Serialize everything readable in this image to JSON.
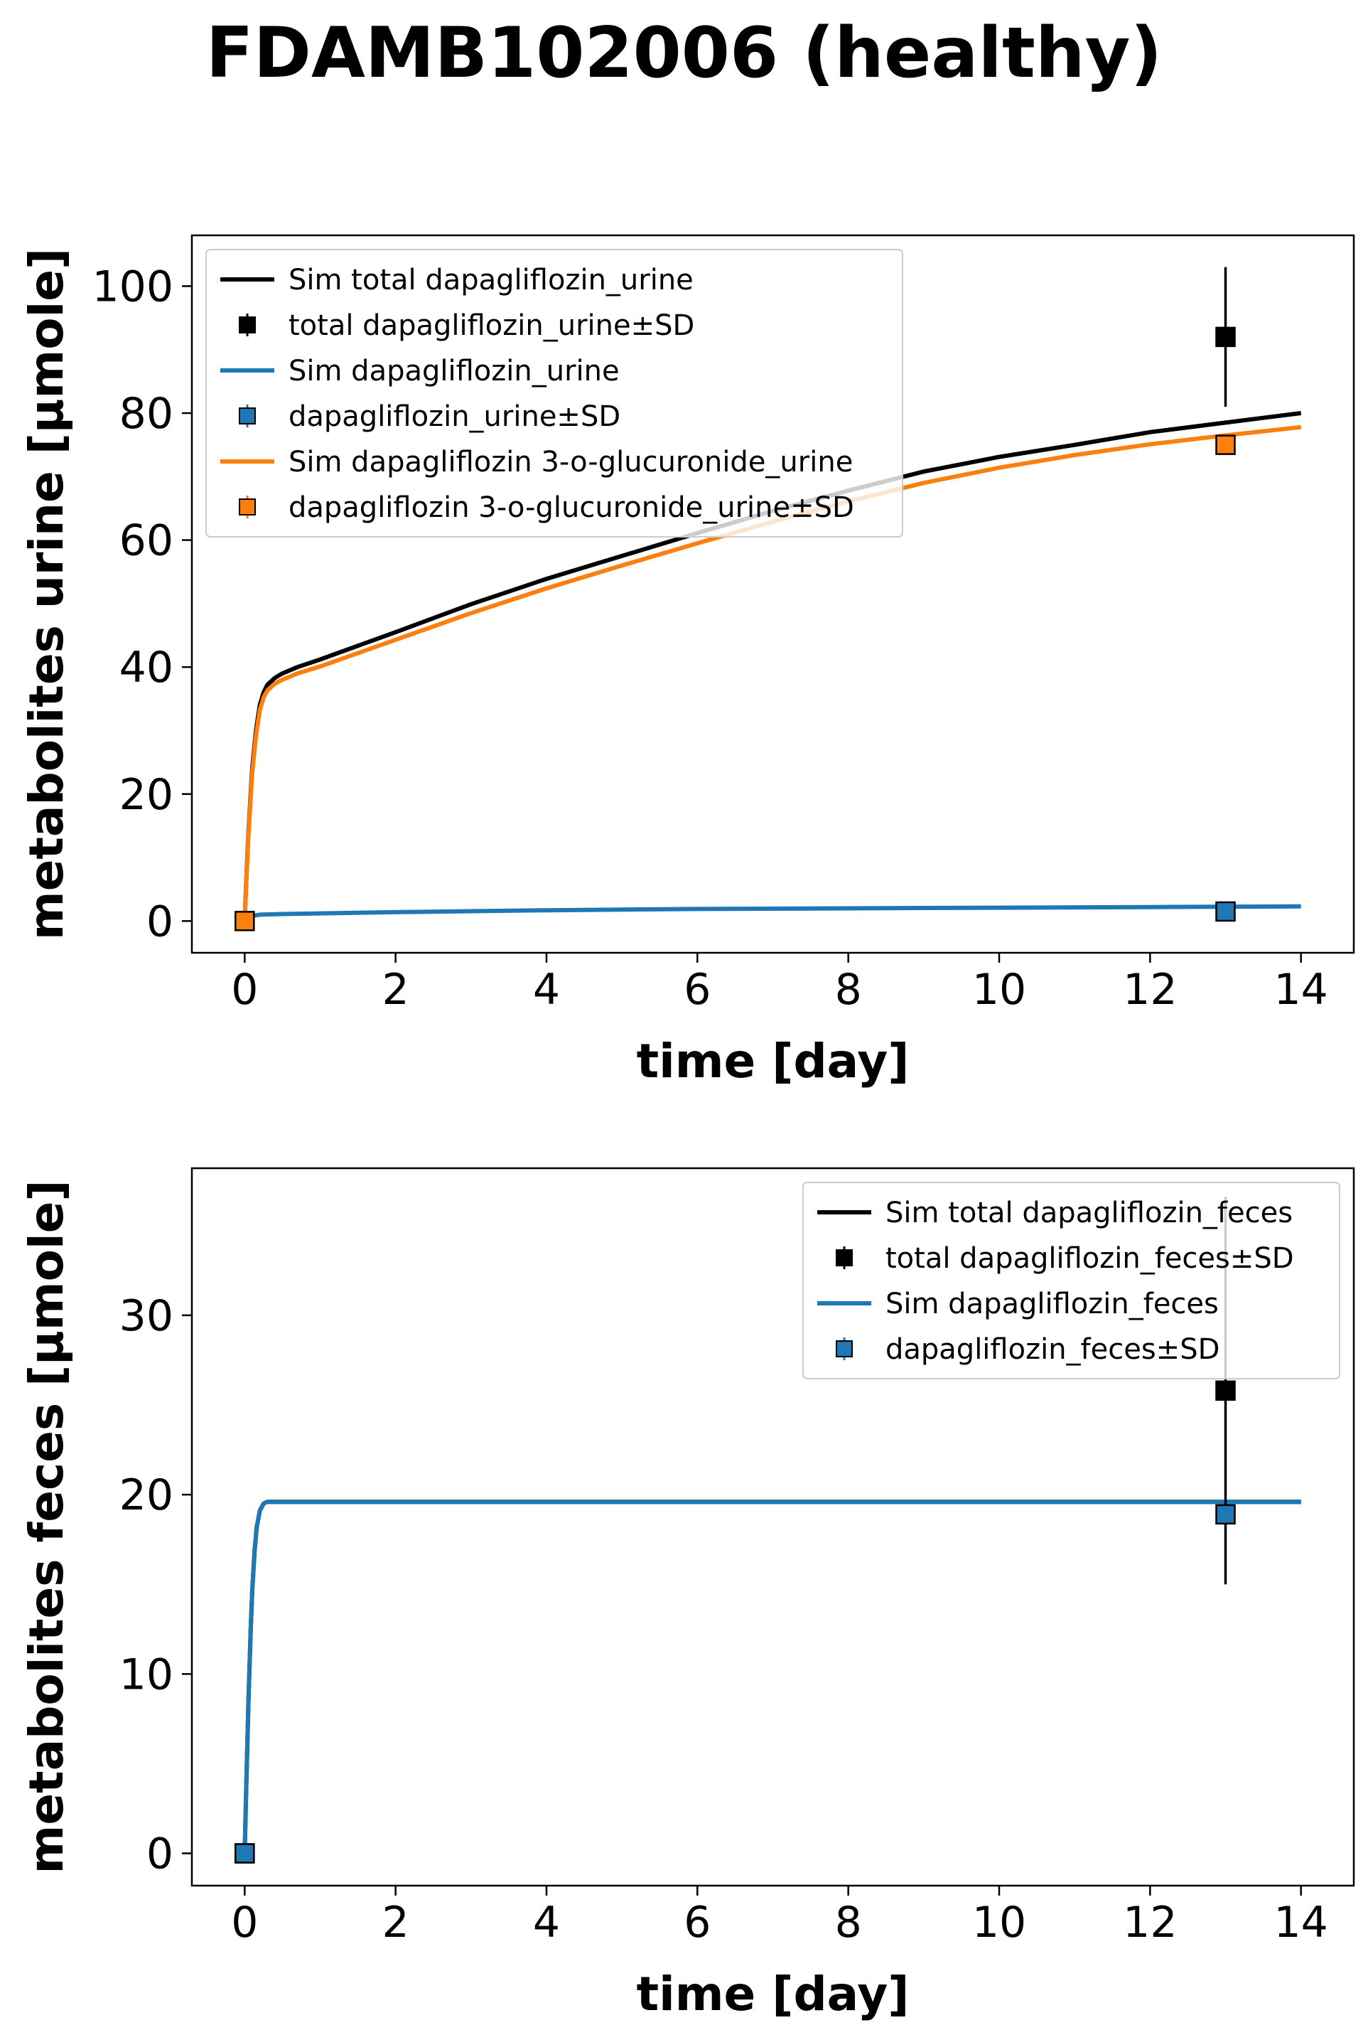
{
  "title": "FDAMB102006 (healthy)",
  "chart_data": [
    {
      "type": "line",
      "xlabel": "time [day]",
      "ylabel": "metabolites urine [µmole]",
      "xlim": [
        -0.7,
        14.7
      ],
      "ylim": [
        -5,
        108
      ],
      "xticks": [
        0,
        2,
        4,
        6,
        8,
        10,
        12,
        14
      ],
      "yticks": [
        0,
        20,
        40,
        60,
        80,
        100
      ],
      "grid": false,
      "legend_position": "top-left",
      "series": [
        {
          "name": "Sim total dapagliflozin_urine",
          "kind": "line",
          "color": "#000000",
          "x": [
            0,
            0.02,
            0.05,
            0.1,
            0.15,
            0.2,
            0.25,
            0.3,
            0.4,
            0.5,
            0.7,
            1,
            2,
            3,
            4,
            5,
            6,
            7,
            8,
            9,
            10,
            11,
            12,
            13,
            14
          ],
          "y": [
            0,
            6,
            14,
            24,
            30,
            34,
            36,
            37.2,
            38.3,
            39,
            40,
            41.2,
            45.5,
            49.9,
            53.9,
            57.5,
            61.1,
            64.6,
            67.8,
            70.8,
            73.1,
            75,
            77,
            78.5,
            80
          ]
        },
        {
          "name": "total dapagliflozin_urine±SD",
          "kind": "errorbar",
          "color": "#000000",
          "x": [
            13
          ],
          "y": [
            92
          ],
          "yerr": [
            11
          ]
        },
        {
          "name": "Sim dapagliflozin_urine",
          "kind": "line",
          "color": "#1f77b4",
          "x": [
            0,
            0.05,
            0.1,
            0.2,
            0.5,
            1,
            2,
            4,
            6,
            8,
            10,
            12,
            14
          ],
          "y": [
            0,
            0.5,
            0.8,
            1.0,
            1.1,
            1.2,
            1.4,
            1.7,
            1.9,
            2.0,
            2.1,
            2.2,
            2.3
          ]
        },
        {
          "name": "dapagliflozin_urine±SD",
          "kind": "errorbar",
          "color": "#1f77b4",
          "x": [
            13
          ],
          "y": [
            1.5
          ],
          "yerr": [
            0
          ]
        },
        {
          "name": "Sim dapagliflozin 3-o-glucuronide_urine",
          "kind": "line",
          "color": "#ff7f0e",
          "x": [
            0,
            0.02,
            0.05,
            0.1,
            0.15,
            0.2,
            0.25,
            0.3,
            0.4,
            0.5,
            0.7,
            1,
            2,
            3,
            4,
            5,
            6,
            7,
            8,
            9,
            10,
            11,
            12,
            13,
            14
          ],
          "y": [
            0,
            5.8,
            13.6,
            23.3,
            29.2,
            33.2,
            35.2,
            36.3,
            37.4,
            38,
            39,
            40.1,
            44.3,
            48.5,
            52.4,
            56,
            59.5,
            62.9,
            66.1,
            69,
            71.4,
            73.4,
            75.1,
            76.5,
            77.8
          ]
        },
        {
          "name": "dapagliflozin 3-o-glucuronide_urine±SD",
          "kind": "errorbar",
          "color": "#ff7f0e",
          "x": [
            0,
            13
          ],
          "y": [
            0,
            75
          ],
          "yerr": [
            0,
            0
          ]
        }
      ]
    },
    {
      "type": "line",
      "xlabel": "time [day]",
      "ylabel": "metabolites feces [µmole]",
      "xlim": [
        -0.7,
        14.7
      ],
      "ylim": [
        -1.8,
        38.2
      ],
      "xticks": [
        0,
        2,
        4,
        6,
        8,
        10,
        12,
        14
      ],
      "yticks": [
        0,
        10,
        20,
        30
      ],
      "grid": false,
      "legend_position": "top-right",
      "series": [
        {
          "name": "Sim total dapagliflozin_feces",
          "kind": "line",
          "color": "#000000",
          "x": [
            0,
            0.02,
            0.05,
            0.08,
            0.1,
            0.13,
            0.16,
            0.2,
            0.25,
            0.3,
            0.5,
            1,
            14
          ],
          "y": [
            0,
            3.5,
            8.5,
            12.5,
            14.6,
            16.8,
            18.2,
            19.1,
            19.5,
            19.6,
            19.6,
            19.6,
            19.6
          ]
        },
        {
          "name": "total dapagliflozin_feces±SD",
          "kind": "errorbar",
          "color": "#000000",
          "x": [
            0,
            13
          ],
          "y": [
            0,
            25.8
          ],
          "yerr": [
            0,
            10.8
          ]
        },
        {
          "name": "Sim dapagliflozin_feces",
          "kind": "line",
          "color": "#1f77b4",
          "x": [
            0,
            0.02,
            0.05,
            0.08,
            0.1,
            0.13,
            0.16,
            0.2,
            0.25,
            0.3,
            0.5,
            1,
            14
          ],
          "y": [
            0,
            3.5,
            8.5,
            12.5,
            14.6,
            16.8,
            18.2,
            19.1,
            19.5,
            19.6,
            19.6,
            19.6,
            19.6
          ]
        },
        {
          "name": "dapagliflozin_feces±SD",
          "kind": "errorbar",
          "color": "#1f77b4",
          "x": [
            0,
            13
          ],
          "y": [
            0,
            18.9
          ],
          "yerr": [
            0,
            0
          ]
        }
      ]
    }
  ]
}
